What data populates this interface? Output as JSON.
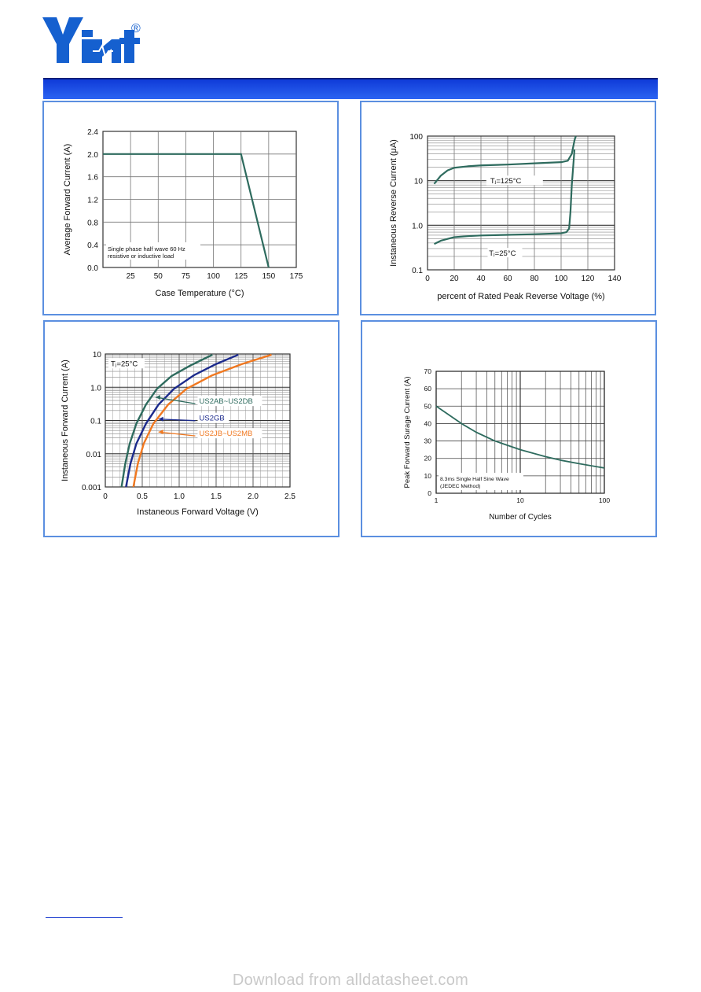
{
  "brand": {
    "logo_text": "Yint",
    "registered_mark": "®",
    "band_color": "#1f4fe8"
  },
  "charts": [
    {
      "id": "derating",
      "ylabel": "Average Forward Current  (A)",
      "xlabel": "Case Temperature (°C)",
      "y_ticks": [
        "0.0",
        "0.4",
        "0.8",
        "1.2",
        "1.6",
        "2.0",
        "2.4"
      ],
      "x_ticks": [
        "25",
        "50",
        "75",
        "100",
        "125",
        "150",
        "175"
      ],
      "note": [
        "Single phase half wave 60 Hz",
        "resistive or inductive load"
      ]
    },
    {
      "id": "reverse",
      "ylabel": "Instaneous Reverse Current  (μA)",
      "xlabel": "percent of Rated  Peak Reverse Voltage (%)",
      "y_ticks": [
        "0.1",
        "1.0",
        "10",
        "100"
      ],
      "x_ticks": [
        "0",
        "20",
        "40",
        "60",
        "80",
        "100",
        "120",
        "140"
      ],
      "labels": [
        "Tⱼ=125°C",
        "Tⱼ=25°C"
      ]
    },
    {
      "id": "forward",
      "ylabel": "Instaneous Forward Current (A)",
      "xlabel": "Instaneous Forward Voltage (V)",
      "y_ticks": [
        "0.001",
        "0.01",
        "0.1",
        "1.0",
        "10"
      ],
      "x_ticks": [
        "0",
        "0.5",
        "1.0",
        "1.5",
        "2.0",
        "2.5"
      ],
      "temp_label": "Tⱼ=25°C",
      "series_labels": [
        "US2AB~US2DB",
        "US2GB",
        "US2JB~US2MB"
      ]
    },
    {
      "id": "surge",
      "ylabel": "Peak Forward Surage Current (A)",
      "xlabel": "Number of Cycles",
      "y_ticks": [
        "0",
        "10",
        "20",
        "30",
        "40",
        "50",
        "60",
        "70"
      ],
      "x_ticks": [
        "1",
        "10",
        "100"
      ],
      "note": [
        "8.3ms Single Half Sine Wave",
        "(JEDEC Method)"
      ]
    }
  ],
  "chart_data": [
    {
      "type": "line",
      "xlabel": "Case Temperature (°C)",
      "ylabel": "Average Forward Current  (A)",
      "xlim": [
        0,
        175
      ],
      "ylim": [
        0,
        2.4
      ],
      "series": [
        {
          "x": [
            0,
            125,
            150
          ],
          "y": [
            2.0,
            2.0,
            0.0
          ]
        }
      ]
    },
    {
      "type": "line",
      "xlabel": "percent of Rated  Peak Reverse Voltage (%)",
      "ylabel": "Instaneous Reverse Current  (μA)",
      "xlim": [
        0,
        140
      ],
      "ylim": [
        0.1,
        100
      ],
      "y_scale": "log",
      "series": [
        {
          "name": "Tⱼ=125°C",
          "x": [
            5,
            10,
            15,
            20,
            30,
            40,
            60,
            80,
            100,
            105,
            108,
            110,
            111
          ],
          "y": [
            8.5,
            13,
            17,
            19.5,
            21,
            22,
            23,
            24.5,
            26,
            28,
            40,
            80,
            100
          ]
        },
        {
          "name": "Tⱼ=25°C",
          "x": [
            5,
            10,
            20,
            30,
            40,
            60,
            80,
            100,
            104,
            106,
            107,
            108,
            110
          ],
          "y": [
            0.38,
            0.45,
            0.54,
            0.57,
            0.59,
            0.61,
            0.63,
            0.66,
            0.7,
            0.85,
            2.0,
            8,
            50
          ]
        }
      ]
    },
    {
      "type": "line",
      "xlabel": "Instaneous Forward Voltage (V)",
      "ylabel": "Instaneous Forward Current (A)",
      "xlim": [
        0,
        2.5
      ],
      "ylim": [
        0.001,
        10
      ],
      "y_scale": "log",
      "series": [
        {
          "name": "US2AB~US2DB",
          "color": "#2e6b5e",
          "x": [
            0.22,
            0.27,
            0.33,
            0.42,
            0.55,
            0.7,
            0.9,
            1.15,
            1.45
          ],
          "y": [
            0.001,
            0.005,
            0.02,
            0.08,
            0.3,
            0.9,
            2.2,
            4.5,
            9.5
          ]
        },
        {
          "name": "US2GB",
          "color": "#1b2a8c",
          "x": [
            0.28,
            0.34,
            0.42,
            0.55,
            0.72,
            0.93,
            1.2,
            1.5,
            1.8
          ],
          "y": [
            0.001,
            0.005,
            0.02,
            0.08,
            0.3,
            0.9,
            2.3,
            5,
            9.5
          ]
        },
        {
          "name": "US2JB~US2MB",
          "color": "#f07820",
          "x": [
            0.38,
            0.44,
            0.52,
            0.65,
            0.85,
            1.1,
            1.45,
            1.85,
            2.25
          ],
          "y": [
            0.001,
            0.005,
            0.02,
            0.08,
            0.3,
            0.9,
            2.3,
            5,
            9.5
          ]
        }
      ]
    },
    {
      "type": "line",
      "xlabel": "Number of Cycles",
      "ylabel": "Peak Forward Surage Current (A)",
      "xlim": [
        1,
        100
      ],
      "ylim": [
        0,
        70
      ],
      "x_scale": "log",
      "series": [
        {
          "x": [
            1,
            2,
            3,
            5,
            10,
            20,
            30,
            50,
            100
          ],
          "y": [
            50,
            40,
            35,
            30,
            25,
            21,
            19,
            17,
            14.5
          ]
        }
      ]
    }
  ],
  "footer": {
    "watermark": "Download from alldatasheet.com"
  }
}
